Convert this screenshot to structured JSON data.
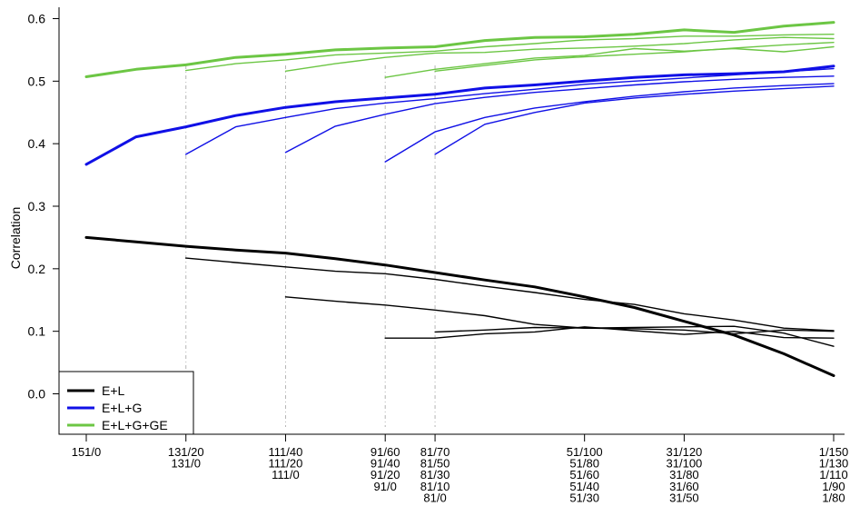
{
  "chart_data": {
    "type": "line",
    "title": "",
    "xlabel": "",
    "ylabel": "Correlation",
    "ylim": [
      -0.04,
      0.6
    ],
    "yticks": [
      0.0,
      0.1,
      0.2,
      0.3,
      0.4,
      0.5,
      0.6
    ],
    "ytick_labels": [
      "0.0",
      "0.1",
      "0.2",
      "0.3",
      "0.4",
      "0.5",
      "0.6"
    ],
    "x_positions": [
      0,
      1,
      2,
      3,
      4,
      5,
      6,
      7,
      8,
      9,
      10,
      11,
      12,
      13,
      14,
      15
    ],
    "xlim": [
      0,
      15
    ],
    "x_tick_groups": [
      {
        "pos": 0,
        "labels": [
          "151/0"
        ]
      },
      {
        "pos": 2,
        "labels": [
          "131/20",
          "131/0"
        ]
      },
      {
        "pos": 4,
        "labels": [
          "111/40",
          "111/20",
          "111/0"
        ]
      },
      {
        "pos": 6,
        "labels": [
          "91/60",
          "91/40",
          "91/20",
          "91/0"
        ]
      },
      {
        "pos": 7,
        "labels": [
          "81/70",
          "81/50",
          "81/30",
          "81/10",
          "81/0"
        ]
      },
      {
        "pos": 10,
        "labels": [
          "51/100",
          "51/80",
          "51/60",
          "51/40",
          "51/30"
        ]
      },
      {
        "pos": 12,
        "labels": [
          "31/120",
          "31/100",
          "31/80",
          "31/60",
          "31/50"
        ]
      },
      {
        "pos": 15,
        "labels": [
          "1/150",
          "1/130",
          "1/110",
          "1/90",
          "1/80"
        ]
      }
    ],
    "dashed_start_lines": [
      2,
      4,
      6,
      7
    ],
    "legend": {
      "position": "bottom-left",
      "entries": [
        {
          "label": "E+L",
          "color": "#000000"
        },
        {
          "label": "E+L+G",
          "color": "#1010e6"
        },
        {
          "label": "E+L+G+GE",
          "color": "#6cc644"
        }
      ]
    },
    "series": [
      {
        "group": "E+L+G+GE",
        "color": "#6cc644",
        "bold": true,
        "start": 0,
        "values": [
          0.507,
          0.519,
          0.526,
          0.538,
          0.543,
          0.55,
          0.553,
          0.555,
          0.565,
          0.57,
          0.571,
          0.575,
          0.582,
          0.578,
          0.588,
          0.594
        ]
      },
      {
        "group": "E+L+G+GE",
        "color": "#6cc644",
        "bold": false,
        "start": 2,
        "values": [
          0.517,
          0.528,
          0.534,
          0.542,
          0.545,
          0.548,
          0.555,
          0.56,
          0.566,
          0.568,
          0.572,
          0.572,
          0.574,
          0.575
        ]
      },
      {
        "group": "E+L+G+GE",
        "color": "#6cc644",
        "bold": false,
        "start": 4,
        "values": [
          0.516,
          0.528,
          0.538,
          0.545,
          0.546,
          0.551,
          0.553,
          0.556,
          0.56,
          0.566,
          0.57,
          0.568
        ]
      },
      {
        "group": "E+L+G+GE",
        "color": "#6cc644",
        "bold": false,
        "start": 6,
        "values": [
          0.506,
          0.519,
          0.528,
          0.537,
          0.541,
          0.552,
          0.548,
          0.552,
          0.547,
          0.555
        ]
      },
      {
        "group": "E+L+G+GE",
        "color": "#6cc644",
        "bold": false,
        "start": 7,
        "values": [
          0.516,
          0.525,
          0.534,
          0.539,
          0.543,
          0.547,
          0.553,
          0.558,
          0.562
        ]
      },
      {
        "group": "E+L+G",
        "color": "#1010e6",
        "bold": true,
        "start": 0,
        "values": [
          0.367,
          0.411,
          0.427,
          0.445,
          0.458,
          0.467,
          0.473,
          0.479,
          0.489,
          0.494,
          0.5,
          0.506,
          0.51,
          0.512,
          0.515,
          0.524
        ]
      },
      {
        "group": "E+L+G",
        "color": "#1010e6",
        "bold": false,
        "start": 2,
        "values": [
          0.383,
          0.427,
          0.442,
          0.456,
          0.465,
          0.472,
          0.48,
          0.487,
          0.495,
          0.5,
          0.505,
          0.51,
          0.515,
          0.52
        ]
      },
      {
        "group": "E+L+G",
        "color": "#1010e6",
        "bold": false,
        "start": 4,
        "values": [
          0.386,
          0.428,
          0.447,
          0.464,
          0.474,
          0.482,
          0.488,
          0.494,
          0.499,
          0.503,
          0.506,
          0.508
        ]
      },
      {
        "group": "E+L+G",
        "color": "#1010e6",
        "bold": false,
        "start": 6,
        "values": [
          0.371,
          0.419,
          0.442,
          0.457,
          0.467,
          0.476,
          0.483,
          0.489,
          0.493,
          0.496
        ]
      },
      {
        "group": "E+L+G",
        "color": "#1010e6",
        "bold": false,
        "start": 7,
        "values": [
          0.383,
          0.431,
          0.45,
          0.465,
          0.473,
          0.479,
          0.484,
          0.488,
          0.492
        ]
      },
      {
        "group": "E+L",
        "color": "#000000",
        "bold": true,
        "start": 0,
        "values": [
          0.25,
          0.243,
          0.236,
          0.23,
          0.225,
          0.216,
          0.206,
          0.194,
          0.182,
          0.171,
          0.155,
          0.138,
          0.116,
          0.094,
          0.064,
          0.029
        ]
      },
      {
        "group": "E+L",
        "color": "#000000",
        "bold": false,
        "start": 2,
        "values": [
          0.217,
          0.21,
          0.203,
          0.196,
          0.192,
          0.183,
          0.172,
          0.162,
          0.151,
          0.143,
          0.128,
          0.118,
          0.105,
          0.101
        ]
      },
      {
        "group": "E+L",
        "color": "#000000",
        "bold": false,
        "start": 4,
        "values": [
          0.155,
          0.148,
          0.142,
          0.134,
          0.125,
          0.111,
          0.105,
          0.106,
          0.107,
          0.108,
          0.097,
          0.076
        ]
      },
      {
        "group": "E+L",
        "color": "#000000",
        "bold": false,
        "start": 6,
        "values": [
          0.089,
          0.089,
          0.096,
          0.099,
          0.107,
          0.101,
          0.095,
          0.1,
          0.09,
          0.089
        ]
      },
      {
        "group": "E+L",
        "color": "#000000",
        "bold": false,
        "start": 7,
        "values": [
          0.099,
          0.102,
          0.106,
          0.105,
          0.104,
          0.102,
          0.096,
          0.102,
          0.1
        ]
      }
    ]
  }
}
